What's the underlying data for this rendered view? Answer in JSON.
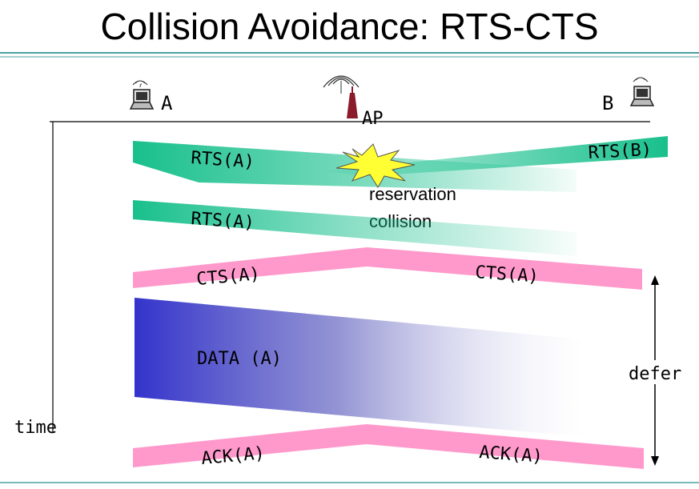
{
  "title": "Collision Avoidance: RTS-CTS",
  "nodes": {
    "a_label": "A",
    "ap_label": "AP",
    "b_label": "B"
  },
  "messages": {
    "rts_a_first": "RTS(A)",
    "rts_b": "RTS(B)",
    "rts_a_second": "RTS(A)",
    "cts_a_left": "CTS(A)",
    "cts_a_right": "CTS(A)",
    "data_a": "DATA (A)",
    "ack_a_left": "ACK(A)",
    "ack_a_right": "ACK(A)"
  },
  "annotations": {
    "collision_line1": "reservation",
    "collision_line2": "collision",
    "defer": "defer",
    "time": "time"
  },
  "colors": {
    "rts": "#19c08c",
    "cts_ack": "#ff99cc",
    "data": "#3333cc",
    "rule": "#4aa0a0",
    "burst": "#ffff33"
  },
  "icons": [
    "laptop-icon",
    "antenna-tower-icon",
    "wireless-waves-icon",
    "collision-burst-icon"
  ]
}
